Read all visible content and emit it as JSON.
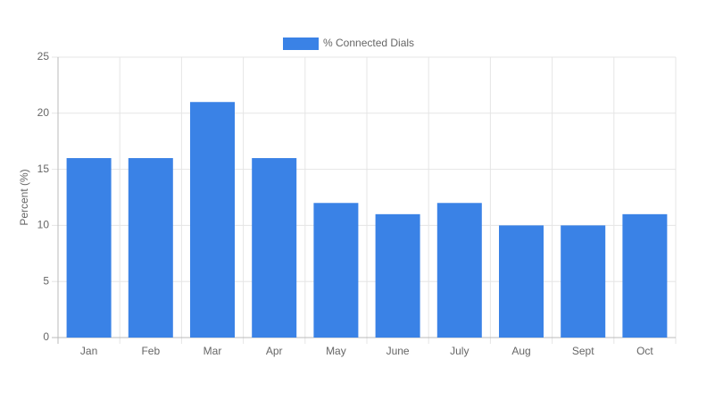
{
  "chart_data": {
    "type": "bar",
    "y_label": "Percent (%)",
    "categories": [
      "Jan",
      "Feb",
      "Mar",
      "Apr",
      "May",
      "June",
      "July",
      "Aug",
      "Sept",
      "Oct"
    ],
    "series": [
      {
        "name": "% Connected Dials",
        "color": "#3a82e6",
        "values": [
          16,
          16,
          21,
          16,
          12,
          11,
          12,
          10,
          10,
          11
        ]
      }
    ],
    "ylim": [
      0,
      25
    ],
    "yticks": [
      0,
      5,
      10,
      15,
      20,
      25
    ],
    "grid": true,
    "legend": "top"
  }
}
